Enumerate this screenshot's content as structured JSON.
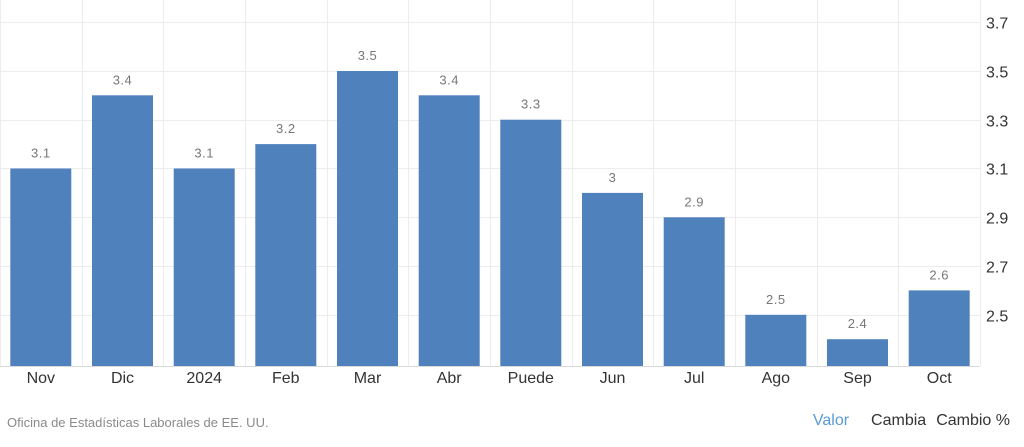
{
  "chart_data": {
    "type": "bar",
    "categories": [
      "Nov",
      "Dic",
      "2024",
      "Feb",
      "Mar",
      "Abr",
      "Puede",
      "Jun",
      "Jul",
      "Ago",
      "Sep",
      "Oct"
    ],
    "values": [
      3.1,
      3.4,
      3.1,
      3.2,
      3.5,
      3.4,
      3.3,
      3.0,
      2.9,
      2.5,
      2.4,
      2.6
    ],
    "data_labels": [
      "3.1",
      "3.4",
      "3.1",
      "3.2",
      "3.5",
      "3.4",
      "3.3",
      "3",
      "2.9",
      "2.5",
      "2.4",
      "2.6"
    ],
    "y_ticks": [
      "2.5",
      "2.7",
      "2.9",
      "3.1",
      "3.3",
      "3.5",
      "3.7"
    ],
    "ylim": [
      2.29,
      3.75
    ],
    "y_axis_position": "right",
    "grid": true,
    "title": "",
    "xlabel": "",
    "ylabel": "",
    "bar_color": "#4f81bd"
  },
  "footer": {
    "source": "Oficina de Estadísticas Laborales de EE. UU.",
    "tabs": [
      "Valor",
      "Cambia",
      "Cambio %"
    ],
    "active_tab_color": "#5a9ad6"
  }
}
